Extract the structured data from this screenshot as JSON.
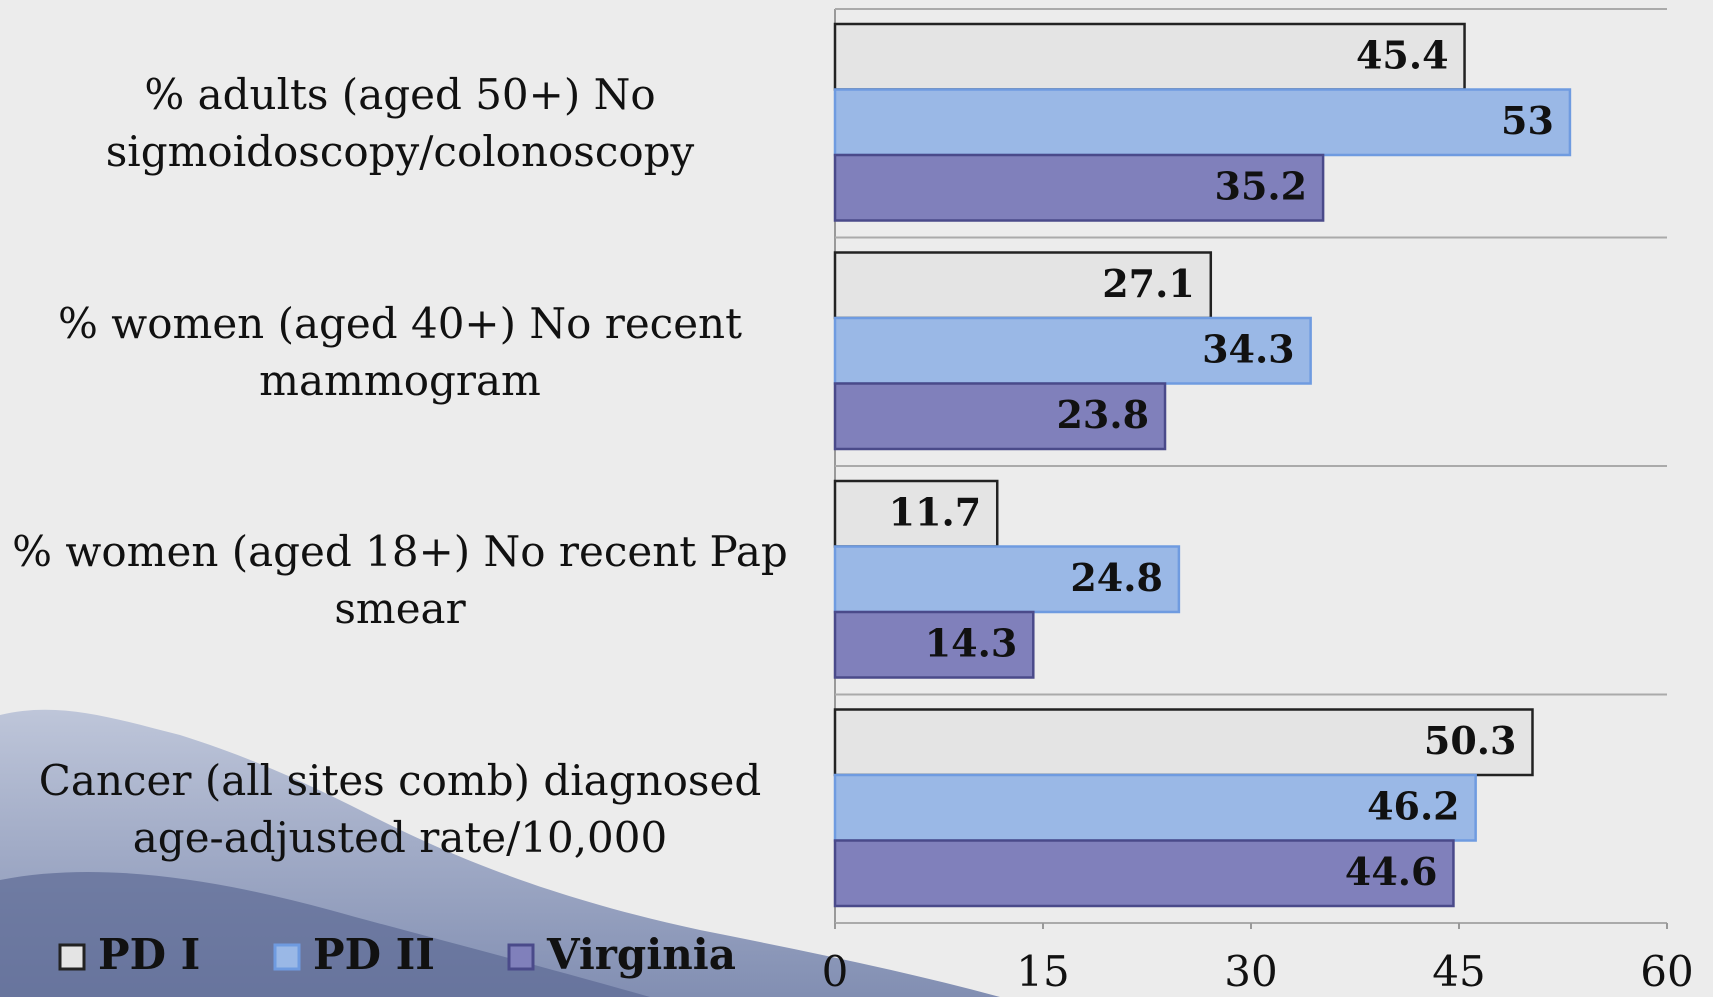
{
  "chart_data": {
    "type": "bar",
    "orientation": "horizontal",
    "categories": [
      "% adults (aged 50+) No sigmoidoscopy/colonoscopy",
      "% women (aged 40+) No recent mammogram",
      "% women (aged 18+) No recent Pap smear",
      "Cancer (all sites comb) diagnosed age-adjusted rate/10,000"
    ],
    "series": [
      {
        "name": "PD I",
        "color": "#e4e4e4",
        "values": [
          45.4,
          27.1,
          11.7,
          50.3
        ]
      },
      {
        "name": "PD II",
        "color": "#9ab8e6",
        "values": [
          53,
          34.3,
          24.8,
          46.2
        ]
      },
      {
        "name": "Virginia",
        "color": "#8080bb",
        "values": [
          35.2,
          23.8,
          14.3,
          44.6
        ]
      }
    ],
    "xlim": [
      0,
      60
    ],
    "xticks": [
      0,
      15,
      30,
      45,
      60
    ],
    "legend": "bottom-left"
  }
}
